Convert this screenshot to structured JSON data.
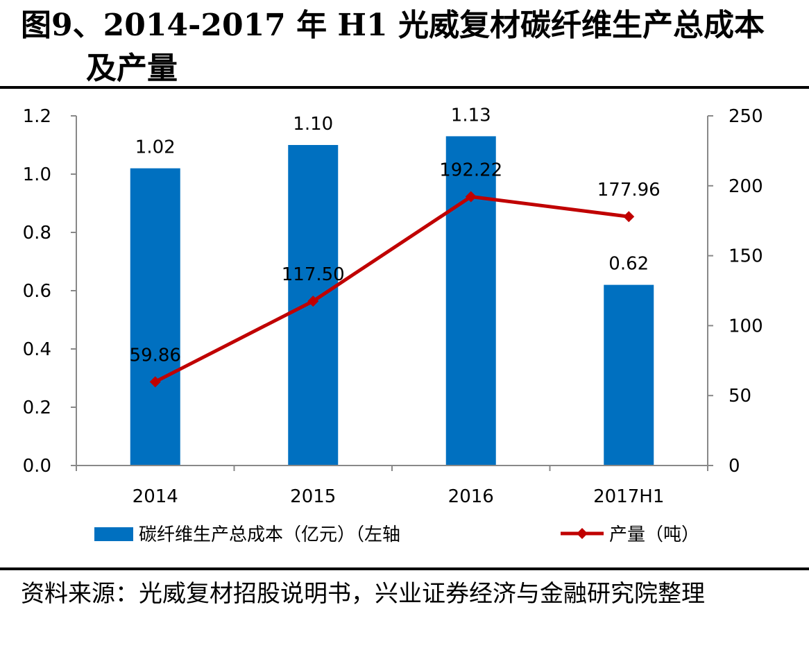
{
  "figure": {
    "title_line1": "图9、2014-2017 年 H1 光威复材碳纤维生产总成本",
    "title_line2": "及产量",
    "source": "资料来源：光威复材招股说明书，兴业证券经济与金融研究院整理"
  },
  "chart_data": {
    "type": "bar",
    "categories": [
      "2014",
      "2015",
      "2016",
      "2017H1"
    ],
    "series": [
      {
        "name": "碳纤维生产总成本（亿元）（左轴",
        "type": "bar",
        "axis": "left",
        "values": [
          1.02,
          1.1,
          1.13,
          0.62
        ],
        "labels": [
          "1.02",
          "1.10",
          "1.13",
          "0.62"
        ],
        "color": "#0070C0"
      },
      {
        "name": "产量（吨）",
        "type": "line",
        "axis": "right",
        "values": [
          59.86,
          117.5,
          192.22,
          177.96
        ],
        "labels": [
          "59.86",
          "117.50",
          "192.22",
          "177.96"
        ],
        "color": "#C00000"
      }
    ],
    "y_left": {
      "min": 0,
      "max": 1.2,
      "ticks": [
        "0.0",
        "0.2",
        "0.4",
        "0.6",
        "0.8",
        "1.0",
        "1.2"
      ]
    },
    "y_right": {
      "min": 0,
      "max": 250,
      "ticks": [
        "0",
        "50",
        "100",
        "150",
        "200",
        "250"
      ]
    },
    "grid": false,
    "legend_position": "bottom"
  }
}
